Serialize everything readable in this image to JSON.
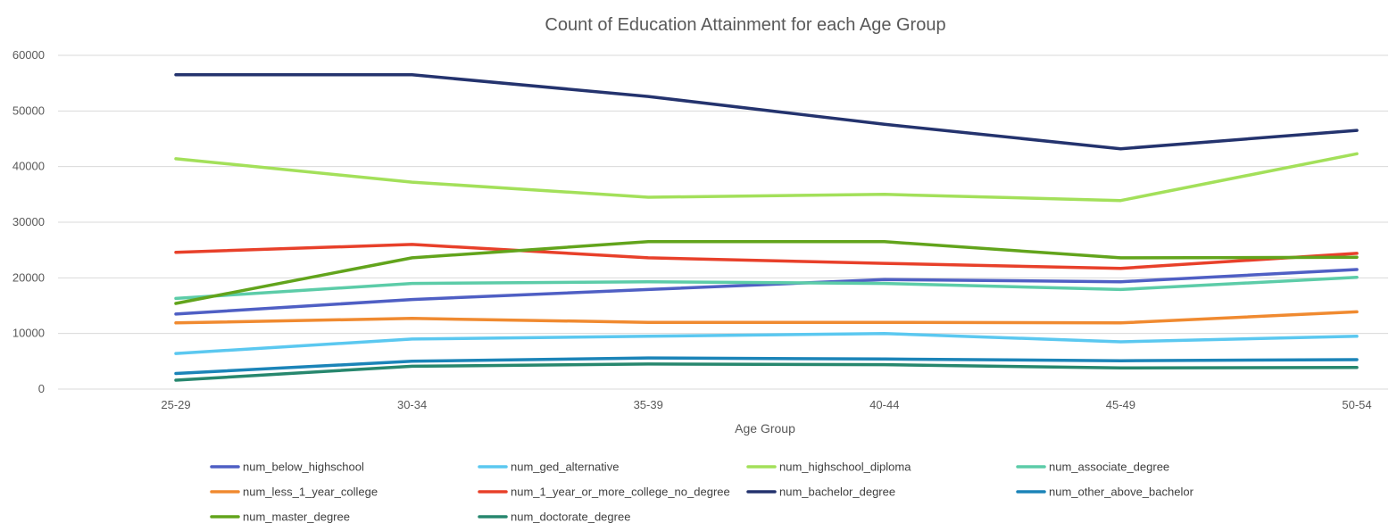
{
  "chart_data": {
    "type": "line",
    "title": "Count of Education Attainment for each Age Group",
    "xlabel": "Age Group",
    "ylabel": "",
    "ylim": [
      0,
      60000
    ],
    "yticks": [
      0,
      10000,
      20000,
      30000,
      40000,
      50000,
      60000
    ],
    "grid": true,
    "legend_position": "bottom",
    "categories": [
      "25-29",
      "30-34",
      "35-39",
      "40-44",
      "45-49",
      "50-54"
    ],
    "series": [
      {
        "name": "num_below_highschool",
        "color": "#4f5fc4",
        "values": [
          13500,
          16100,
          17900,
          19700,
          19300,
          21500
        ]
      },
      {
        "name": "num_ged_alternative",
        "color": "#5bc8f0",
        "values": [
          6400,
          9000,
          9500,
          10000,
          8500,
          9500
        ]
      },
      {
        "name": "num_highschool_diploma",
        "color": "#a3e05a",
        "values": [
          41400,
          37200,
          34500,
          35000,
          33900,
          42300
        ]
      },
      {
        "name": "num_associate_degree",
        "color": "#5ccca8",
        "values": [
          16300,
          19000,
          19300,
          19000,
          17900,
          20100
        ]
      },
      {
        "name": "num_less_1_year_college",
        "color": "#f08a30",
        "values": [
          11900,
          12700,
          12000,
          12000,
          11900,
          13900
        ]
      },
      {
        "name": "num_1_year_or_more_college_no_degree",
        "color": "#e8402a",
        "values": [
          24600,
          26000,
          23600,
          22600,
          21700,
          24400
        ]
      },
      {
        "name": "num_bachelor_degree",
        "color": "#24336e",
        "values": [
          56500,
          56500,
          52600,
          47600,
          43200,
          46500
        ]
      },
      {
        "name": "num_other_above_bachelor",
        "color": "#1b84b8",
        "values": [
          2800,
          5000,
          5600,
          5400,
          5100,
          5300
        ]
      },
      {
        "name": "num_master_degree",
        "color": "#62a41c",
        "values": [
          15400,
          23600,
          26500,
          26500,
          23600,
          23700
        ]
      },
      {
        "name": "num_doctorate_degree",
        "color": "#27876e",
        "values": [
          1600,
          4100,
          4500,
          4400,
          3800,
          3900
        ]
      }
    ]
  }
}
